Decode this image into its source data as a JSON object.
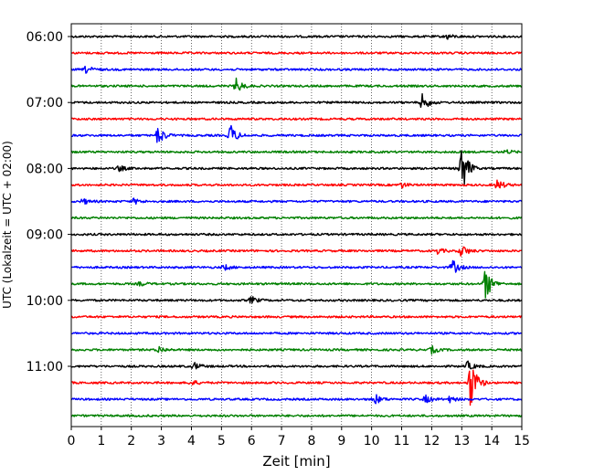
{
  "chart_data": {
    "type": "line",
    "title": "",
    "xlabel": "Zeit  [min]",
    "ylabel": "UTC (Lokalzeit = UTC + 02:00)",
    "xlim": [
      0,
      15
    ],
    "x_ticks": [
      0,
      1,
      2,
      3,
      4,
      5,
      6,
      7,
      8,
      9,
      10,
      11,
      12,
      13,
      14,
      15
    ],
    "x_tick_labels": [
      "0",
      "1",
      "2",
      "3",
      "4",
      "5",
      "6",
      "7",
      "8",
      "9",
      "10",
      "11",
      "12",
      "13",
      "14",
      "15"
    ],
    "y_tick_labels": [
      "06:00",
      "07:00",
      "08:00",
      "09:00",
      "10:00",
      "11:00"
    ],
    "vertical_grid": true,
    "trace_colors": [
      "#000000",
      "#ff0000",
      "#0000ff",
      "#008000"
    ],
    "traces": [
      {
        "start": "06:00",
        "color": "#000000",
        "events": [
          {
            "t": 12.5,
            "amp": 0.3
          }
        ]
      },
      {
        "start": "06:15",
        "color": "#ff0000",
        "events": []
      },
      {
        "start": "06:30",
        "color": "#0000ff",
        "events": [
          {
            "t": 0.5,
            "amp": 0.4
          }
        ]
      },
      {
        "start": "06:45",
        "color": "#008000",
        "events": [
          {
            "t": 5.5,
            "amp": 0.8
          }
        ]
      },
      {
        "start": "07:00",
        "color": "#000000",
        "events": [
          {
            "t": 11.7,
            "amp": 1.0
          }
        ]
      },
      {
        "start": "07:15",
        "color": "#ff0000",
        "events": []
      },
      {
        "start": "07:30",
        "color": "#0000ff",
        "events": [
          {
            "t": 2.9,
            "amp": 1.1
          },
          {
            "t": 5.3,
            "amp": 1.2
          }
        ]
      },
      {
        "start": "07:45",
        "color": "#008000",
        "events": [
          {
            "t": 14.5,
            "amp": 0.2
          }
        ]
      },
      {
        "start": "08:00",
        "color": "#000000",
        "events": [
          {
            "t": 13.0,
            "amp": 3.0
          },
          {
            "t": 1.6,
            "amp": 0.3
          }
        ]
      },
      {
        "start": "08:15",
        "color": "#ff0000",
        "events": [
          {
            "t": 14.2,
            "amp": 0.6
          },
          {
            "t": 11.0,
            "amp": 0.3
          }
        ]
      },
      {
        "start": "08:30",
        "color": "#0000ff",
        "events": [
          {
            "t": 0.4,
            "amp": 0.3
          },
          {
            "t": 2.1,
            "amp": 0.3
          }
        ]
      },
      {
        "start": "08:45",
        "color": "#008000",
        "events": []
      },
      {
        "start": "09:00",
        "color": "#000000",
        "events": []
      },
      {
        "start": "09:15",
        "color": "#ff0000",
        "events": [
          {
            "t": 13.0,
            "amp": 0.7
          },
          {
            "t": 12.2,
            "amp": 0.3
          }
        ]
      },
      {
        "start": "09:30",
        "color": "#0000ff",
        "events": [
          {
            "t": 12.7,
            "amp": 0.8
          },
          {
            "t": 5.1,
            "amp": 0.3
          }
        ]
      },
      {
        "start": "09:45",
        "color": "#008000",
        "events": [
          {
            "t": 13.8,
            "amp": 1.8
          },
          {
            "t": 2.3,
            "amp": 0.2
          }
        ]
      },
      {
        "start": "10:00",
        "color": "#000000",
        "events": [
          {
            "t": 6.0,
            "amp": 0.4
          }
        ]
      },
      {
        "start": "10:15",
        "color": "#ff0000",
        "events": []
      },
      {
        "start": "10:30",
        "color": "#0000ff",
        "events": []
      },
      {
        "start": "10:45",
        "color": "#008000",
        "events": [
          {
            "t": 2.9,
            "amp": 0.4
          },
          {
            "t": 12.0,
            "amp": 0.4
          }
        ]
      },
      {
        "start": "11:00",
        "color": "#000000",
        "events": [
          {
            "t": 4.1,
            "amp": 0.4
          },
          {
            "t": 13.2,
            "amp": 0.5
          }
        ]
      },
      {
        "start": "11:15",
        "color": "#ff0000",
        "events": [
          {
            "t": 13.3,
            "amp": 3.0
          },
          {
            "t": 4.0,
            "amp": 0.3
          }
        ]
      },
      {
        "start": "11:30",
        "color": "#0000ff",
        "events": [
          {
            "t": 10.1,
            "amp": 0.6
          },
          {
            "t": 11.8,
            "amp": 0.4
          },
          {
            "t": 12.6,
            "amp": 0.3
          }
        ]
      },
      {
        "start": "11:45",
        "color": "#008000",
        "events": []
      }
    ]
  }
}
